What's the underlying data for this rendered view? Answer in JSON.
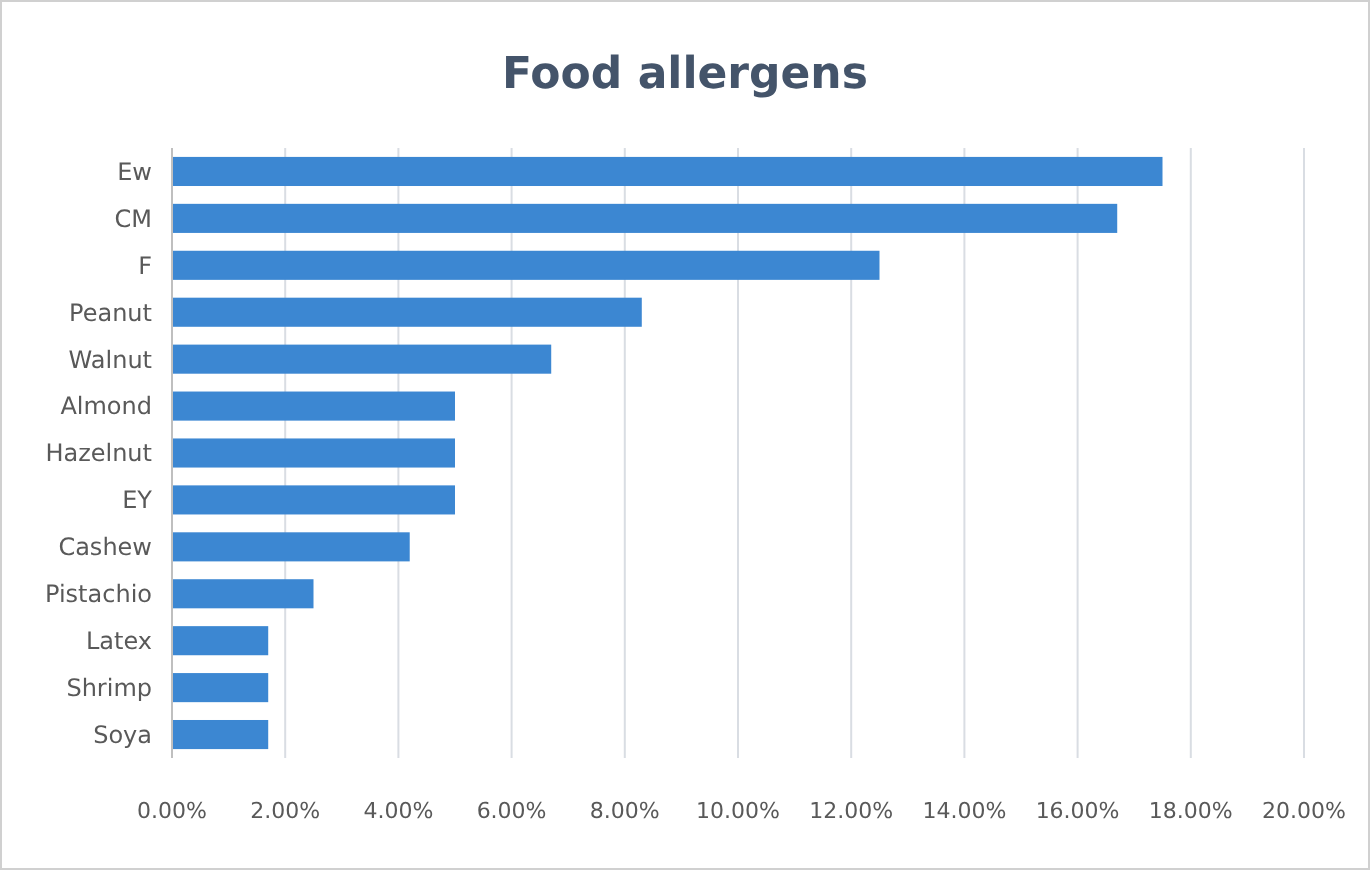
{
  "chart_data": {
    "type": "bar",
    "orientation": "horizontal",
    "title": "Food allergens",
    "categories": [
      "Ew",
      "CM",
      "F",
      "Peanut",
      "Walnut",
      "Almond",
      "Hazelnut",
      "EY",
      "Cashew",
      "Pistachio",
      "Latex",
      "Shrimp",
      "Soya"
    ],
    "values": [
      17.5,
      16.7,
      12.5,
      8.3,
      6.7,
      5.0,
      5.0,
      5.0,
      4.2,
      2.5,
      1.7,
      1.7,
      1.7
    ],
    "color": "#3c87d2",
    "xlim": [
      0,
      20
    ],
    "xticks": [
      {
        "value": 0,
        "label": "0.00%"
      },
      {
        "value": 2,
        "label": "2.00%"
      },
      {
        "value": 4,
        "label": "4.00%"
      },
      {
        "value": 6,
        "label": "6.00%"
      },
      {
        "value": 8,
        "label": "8.00%"
      },
      {
        "value": 10,
        "label": "10.00%"
      },
      {
        "value": 12,
        "label": "12.00%"
      },
      {
        "value": 14,
        "label": "14.00%"
      },
      {
        "value": 16,
        "label": "16.00%"
      },
      {
        "value": 18,
        "label": "18.00%"
      },
      {
        "value": 20,
        "label": "20.00%"
      }
    ],
    "grid": "x"
  }
}
